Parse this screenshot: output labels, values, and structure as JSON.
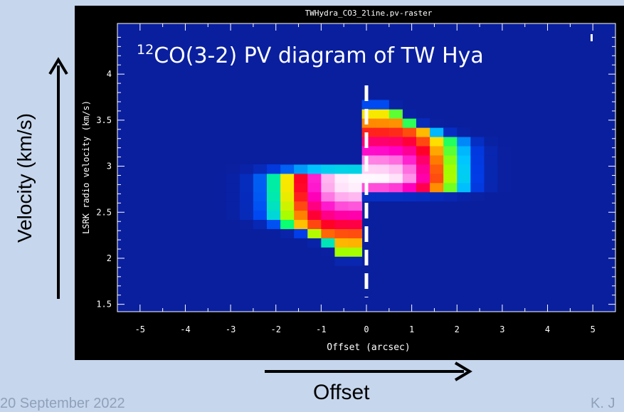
{
  "slide": {
    "date": "20 September 2022",
    "author": "K. J",
    "velocity_label": "Velocity (km/s)",
    "offset_label": "Offset"
  },
  "chart_data": {
    "type": "heatmap",
    "window_title": "TWHydra_CO3_2line.pv-raster",
    "overlay_title_superscript": "12",
    "overlay_title": "CO(3-2) PV diagram of TW Hya",
    "xlabel": "Offset (arcsec)",
    "ylabel": "LSRK radio velocity  (km/s)",
    "xlim": [
      -5.5,
      5.5
    ],
    "ylim": [
      1.42,
      4.55
    ],
    "x_ticks": [
      -5,
      -4,
      -3,
      -2,
      -1,
      0,
      1,
      2,
      3,
      4,
      5
    ],
    "x_tick_labels": [
      "-5",
      "-4",
      "-3",
      "-2",
      "-1",
      "0",
      "1",
      "2",
      "3",
      "4",
      "5"
    ],
    "y_ticks": [
      1.5,
      2,
      2.5,
      3,
      3.5,
      4
    ],
    "y_tick_labels": [
      "1.5",
      "2",
      "2.5",
      "3",
      "3.5",
      "4"
    ],
    "reference_offset": 0,
    "colormap": "rainbow",
    "pixel_dx_arcsec": 0.3,
    "pixel_dv_kms": 0.1,
    "colors": {
      "panel_background": "#000000",
      "map_background": "#0a1f9e",
      "reference_line": "#ffffff",
      "slide_background": "#c6d6ec"
    }
  }
}
